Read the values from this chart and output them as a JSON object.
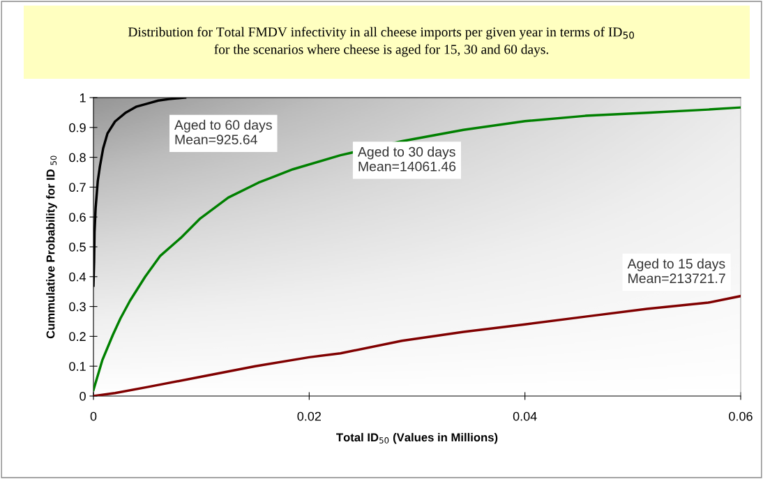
{
  "chart_data": {
    "type": "line",
    "title": "Distribution for Total FMDV infectivity in all cheese imports per given year in terms of ID$_{50}$\nfor the scenarios where cheese is aged for 15, 30 and 60 days.",
    "xlabel": "Total ID$_{50}$ (Values in Millions)",
    "ylabel": "Cummulative Probability for ID $_{50}$",
    "xlim": [
      0,
      0.06
    ],
    "xticks": [
      0,
      0.02,
      0.04,
      0.06
    ],
    "ylim": [
      0,
      1
    ],
    "yticks": [
      0,
      0.1,
      0.2,
      0.3,
      0.4,
      0.5,
      0.6,
      0.7,
      0.8,
      0.9,
      1
    ],
    "grid": false,
    "legend": false,
    "marker": "none",
    "line_style": "solid",
    "series": [
      {
        "name": "Aged to 60 days",
        "color": "#000000",
        "x": [
          0,
          6e-05,
          0.0001,
          0.0002,
          0.0004,
          0.0006,
          0.0009,
          0.0013,
          0.002,
          0.003,
          0.004,
          0.005,
          0.006,
          0.007,
          0.0085
        ],
        "values": [
          0.37,
          0.45,
          0.55,
          0.63,
          0.72,
          0.77,
          0.83,
          0.88,
          0.92,
          0.95,
          0.97,
          0.98,
          0.99,
          0.995,
          1.0
        ]
      },
      {
        "name": "Aged to 30 days",
        "color": "#008000",
        "x": [
          0,
          8e-05,
          0.00082,
          0.0018,
          0.0025,
          0.0034,
          0.0048,
          0.0062,
          0.0081,
          0.0099,
          0.0125,
          0.0153,
          0.0185,
          0.0229,
          0.0286,
          0.0343,
          0.04,
          0.0456,
          0.0513,
          0.057,
          0.06
        ],
        "values": [
          0.02,
          0.03,
          0.12,
          0.205,
          0.26,
          0.32,
          0.4,
          0.47,
          0.53,
          0.595,
          0.665,
          0.715,
          0.76,
          0.807,
          0.854,
          0.892,
          0.921,
          0.939,
          0.949,
          0.96,
          0.967
        ]
      },
      {
        "name": "Aged to 15 days",
        "color": "#800000",
        "x": [
          0,
          0.002,
          0.005,
          0.01,
          0.015,
          0.02,
          0.0229,
          0.0286,
          0.0343,
          0.04,
          0.0456,
          0.0513,
          0.057,
          0.06
        ],
        "values": [
          0,
          0.01,
          0.03,
          0.065,
          0.1,
          0.13,
          0.143,
          0.185,
          0.215,
          0.24,
          0.266,
          0.292,
          0.313,
          0.335
        ]
      }
    ],
    "annotations": [
      "Mean=925.64",
      "Mean=14061.46",
      "Mean=213721.7"
    ]
  }
}
